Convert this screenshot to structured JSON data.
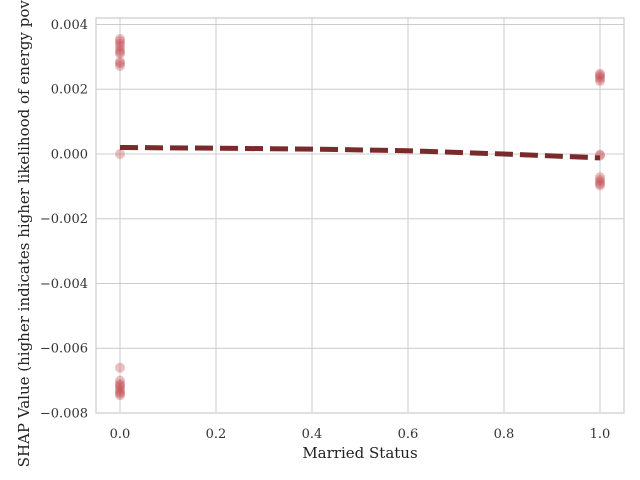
{
  "chart_data": {
    "type": "scatter",
    "xlabel": "Married Status",
    "ylabel": "SHAP Value (higher indicates higher likelihood of energy poverty)",
    "xlim": [
      -0.05,
      1.05
    ],
    "ylim": [
      -0.008,
      0.0042
    ],
    "x_ticks": [
      0.0,
      0.2,
      0.4,
      0.6,
      0.8,
      1.0
    ],
    "x_tick_labels": [
      "0.0",
      "0.2",
      "0.4",
      "0.6",
      "0.8",
      "1.0"
    ],
    "y_ticks": [
      -0.008,
      -0.006,
      -0.004,
      -0.002,
      0.0,
      0.002,
      0.004
    ],
    "y_tick_labels": [
      "−0.008",
      "−0.006",
      "−0.004",
      "−0.002",
      "0.000",
      "0.002",
      "0.004"
    ],
    "grid": true,
    "colors": {
      "points": "#c44e52",
      "trend": "#7b2a2c",
      "grid": "#cccccc"
    },
    "points": [
      {
        "x": 0.0,
        "y": 0.00355
      },
      {
        "x": 0.0,
        "y": 0.00348
      },
      {
        "x": 0.0,
        "y": 0.0034
      },
      {
        "x": 0.0,
        "y": 0.00332
      },
      {
        "x": 0.0,
        "y": 0.00322
      },
      {
        "x": 0.0,
        "y": 0.00315
      },
      {
        "x": 0.0,
        "y": 0.0031
      },
      {
        "x": 0.0,
        "y": 0.00285
      },
      {
        "x": 0.0,
        "y": 0.0028
      },
      {
        "x": 0.0,
        "y": 0.00272
      },
      {
        "x": 0.0,
        "y": 0.0
      },
      {
        "x": 0.0,
        "y": -0.0066
      },
      {
        "x": 0.0,
        "y": -0.007
      },
      {
        "x": 0.0,
        "y": -0.0071
      },
      {
        "x": 0.0,
        "y": -0.00715
      },
      {
        "x": 0.0,
        "y": -0.0072
      },
      {
        "x": 0.0,
        "y": -0.00728
      },
      {
        "x": 0.0,
        "y": -0.00735
      },
      {
        "x": 0.0,
        "y": -0.0074
      },
      {
        "x": 0.0,
        "y": -0.00745
      },
      {
        "x": 1.0,
        "y": 0.00248
      },
      {
        "x": 1.0,
        "y": 0.00243
      },
      {
        "x": 1.0,
        "y": 0.00238
      },
      {
        "x": 1.0,
        "y": 0.00232
      },
      {
        "x": 1.0,
        "y": 0.00225
      },
      {
        "x": 1.0,
        "y": -2e-05
      },
      {
        "x": 1.0,
        "y": -5e-05
      },
      {
        "x": 1.0,
        "y": -0.00072
      },
      {
        "x": 1.0,
        "y": -0.0008
      },
      {
        "x": 1.0,
        "y": -0.00086
      },
      {
        "x": 1.0,
        "y": -0.00092
      },
      {
        "x": 1.0,
        "y": -0.00097
      }
    ],
    "trend": {
      "style": "dashed",
      "x": [
        0.0,
        0.2,
        0.4,
        0.6,
        0.8,
        1.0
      ],
      "y": [
        0.0002,
        0.00018,
        0.00015,
        0.0001,
        0.0,
        -0.00012
      ]
    }
  }
}
